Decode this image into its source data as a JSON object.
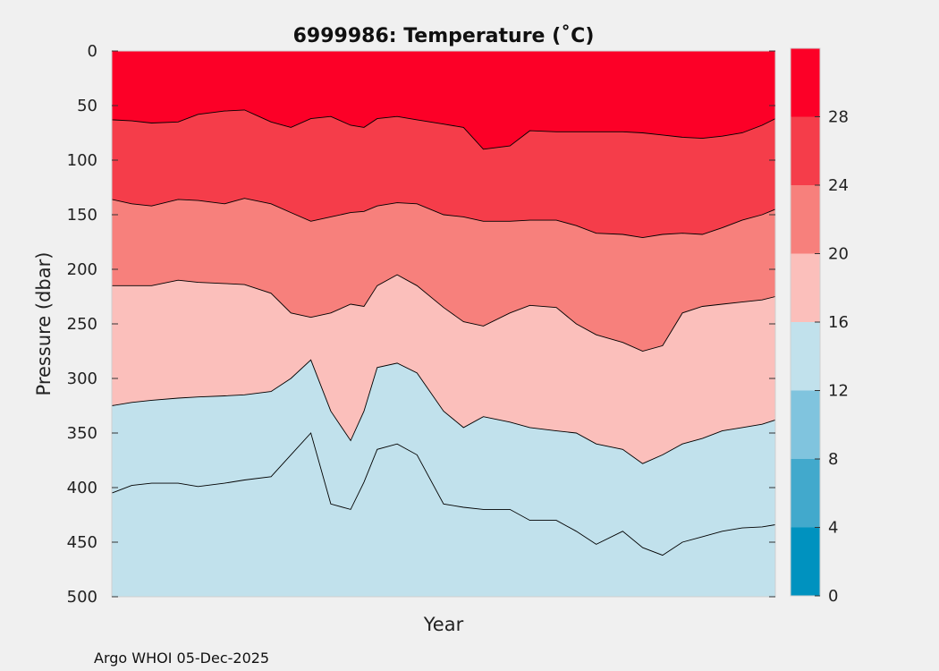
{
  "chart_data": {
    "type": "filled-contour",
    "title": "6999986:  Temperature (˚C)",
    "xlabel": "Year",
    "ylabel": "Pressure (dbar)",
    "y_reversed": true,
    "ylim": [
      0,
      500
    ],
    "y_ticks": [
      0,
      50,
      100,
      150,
      200,
      250,
      300,
      350,
      400,
      450,
      500
    ],
    "x_samples": [
      0,
      0.03,
      0.06,
      0.1,
      0.13,
      0.17,
      0.2,
      0.24,
      0.27,
      0.3,
      0.33,
      0.36,
      0.38,
      0.4,
      0.43,
      0.46,
      0.5,
      0.53,
      0.56,
      0.6,
      0.63,
      0.67,
      0.7,
      0.73,
      0.77,
      0.8,
      0.83,
      0.86,
      0.89,
      0.92,
      0.95,
      0.98,
      1.0
    ],
    "isotherms": [
      {
        "level": 28,
        "pressure": [
          63,
          64,
          66,
          65,
          58,
          55,
          54,
          65,
          70,
          62,
          60,
          68,
          70,
          62,
          60,
          63,
          67,
          70,
          90,
          87,
          73,
          74,
          74,
          74,
          74,
          75,
          77,
          79,
          80,
          78,
          75,
          68,
          62
        ]
      },
      {
        "level": 24,
        "pressure": [
          136,
          140,
          142,
          136,
          137,
          140,
          135,
          140,
          148,
          156,
          152,
          148,
          147,
          142,
          139,
          140,
          150,
          152,
          156,
          156,
          155,
          155,
          160,
          167,
          168,
          171,
          168,
          167,
          168,
          162,
          155,
          150,
          145
        ]
      },
      {
        "level": 20,
        "pressure": [
          215,
          215,
          215,
          210,
          212,
          213,
          214,
          222,
          240,
          244,
          240,
          232,
          234,
          215,
          205,
          215,
          235,
          248,
          252,
          240,
          233,
          235,
          250,
          260,
          267,
          275,
          270,
          240,
          234,
          232,
          230,
          228,
          225
        ]
      },
      {
        "level": 16,
        "pressure": [
          325,
          322,
          320,
          318,
          317,
          316,
          315,
          312,
          300,
          283,
          330,
          357,
          330,
          290,
          286,
          295,
          330,
          345,
          335,
          340,
          345,
          348,
          350,
          360,
          365,
          378,
          370,
          360,
          355,
          348,
          345,
          342,
          338
        ]
      },
      {
        "level": 12,
        "pressure": [
          405,
          398,
          396,
          396,
          399,
          396,
          393,
          390,
          370,
          350,
          415,
          420,
          395,
          365,
          360,
          370,
          415,
          418,
          420,
          420,
          430,
          430,
          440,
          452,
          440,
          455,
          462,
          450,
          445,
          440,
          437,
          436,
          434
        ]
      }
    ],
    "colorbar": {
      "levels": [
        0,
        4,
        8,
        12,
        16,
        20,
        24,
        28
      ],
      "tick_labels": [
        "0",
        "4",
        "8",
        "12",
        "16",
        "20",
        "24",
        "28"
      ],
      "range": [
        0,
        32
      ],
      "colors": [
        "#0092bf",
        "#42a9cc",
        "#80c4de",
        "#c1e1ec",
        "#fbbfbb",
        "#f7807c",
        "#f53d4a",
        "#fc0027"
      ]
    }
  },
  "footer": "Argo WHOI 05-Dec-2025"
}
